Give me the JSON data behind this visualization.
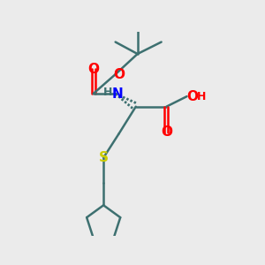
{
  "bg_color": "#ebebeb",
  "bond_color": "#3d7070",
  "N_color": "#0000ff",
  "O_color": "#ff0000",
  "S_color": "#cccc00",
  "H_color": "#3d7070",
  "figsize": [
    3.0,
    3.0
  ],
  "dpi": 100,
  "xlim": [
    -1.8,
    2.4
  ],
  "ylim": [
    -3.8,
    2.2
  ]
}
